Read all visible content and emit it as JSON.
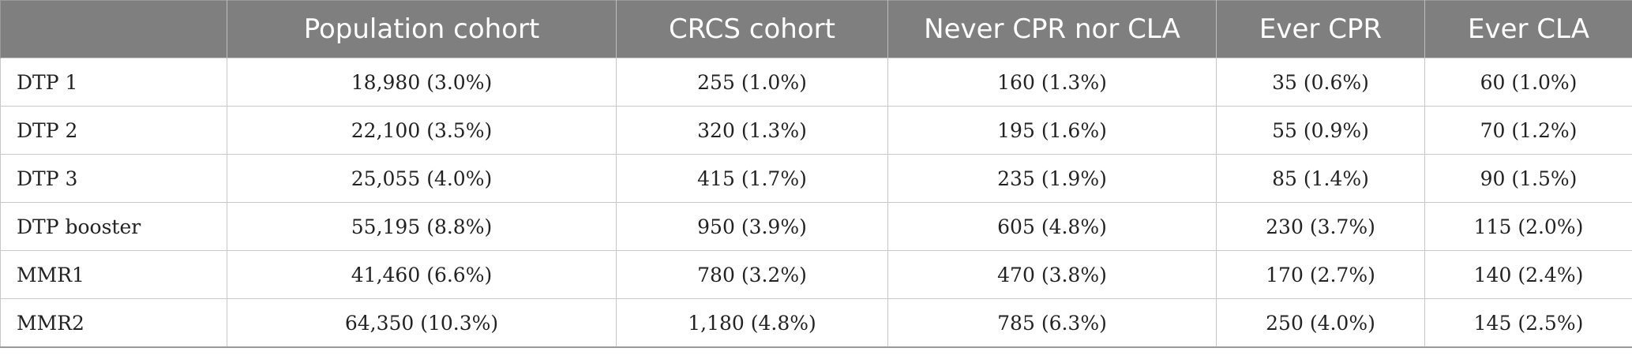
{
  "table": {
    "headers": [
      "",
      "Population cohort",
      "CRCS cohort",
      "Never CPR nor CLA",
      "Ever CPR",
      "Ever CLA"
    ],
    "rows": [
      {
        "label": "DTP 1",
        "cells": [
          "18,980 (3.0%)",
          "255 (1.0%)",
          "160 (1.3%)",
          "35 (0.6%)",
          "60 (1.0%)"
        ]
      },
      {
        "label": "DTP 2",
        "cells": [
          "22,100 (3.5%)",
          "320 (1.3%)",
          "195 (1.6%)",
          "55 (0.9%)",
          "70 (1.2%)"
        ]
      },
      {
        "label": "DTP 3",
        "cells": [
          "25,055 (4.0%)",
          "415 (1.7%)",
          "235 (1.9%)",
          "85 (1.4%)",
          "90 (1.5%)"
        ]
      },
      {
        "label": "DTP booster",
        "cells": [
          "55,195 (8.8%)",
          "950 (3.9%)",
          "605 (4.8%)",
          "230 (3.7%)",
          "115 (2.0%)"
        ]
      },
      {
        "label": "MMR1",
        "cells": [
          "41,460 (6.6%)",
          "780 (3.2%)",
          "470 (3.8%)",
          "170 (2.7%)",
          "140 (2.4%)"
        ]
      },
      {
        "label": "MMR2",
        "cells": [
          "64,350 (10.3%)",
          "1,180 (4.8%)",
          "785 (6.3%)",
          "250 (4.0%)",
          "145 (2.5%)"
        ]
      }
    ]
  },
  "colors": {
    "header_background": "#7f7f7f",
    "header_text": "#ffffff",
    "body_text": "#222222",
    "grid_line": "#c8c8c8"
  }
}
